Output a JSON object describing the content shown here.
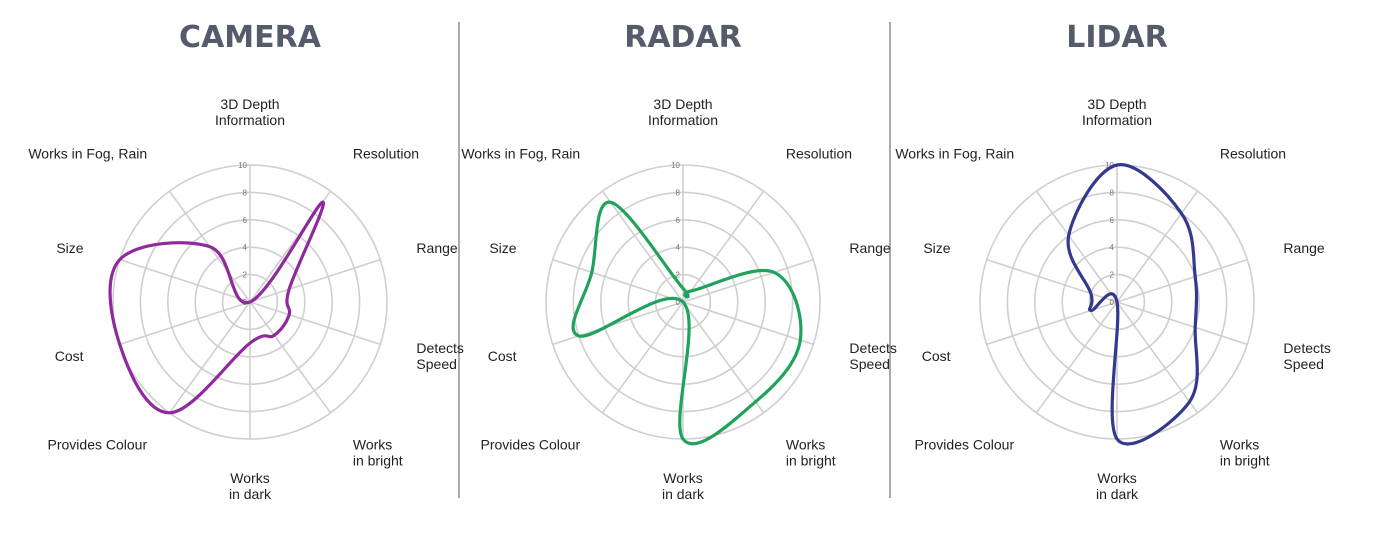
{
  "chart_data": [
    {
      "type": "radar",
      "title": "CAMERA",
      "color": "#8e2a9c",
      "axes": [
        [
          "3D Depth",
          "Information"
        ],
        [
          "Resolution"
        ],
        [
          "Range"
        ],
        [
          "Detects",
          "Speed"
        ],
        [
          "Works",
          "in bright"
        ],
        [
          "Works",
          "in dark"
        ],
        [
          "Provides Colour"
        ],
        [
          "Cost"
        ],
        [
          "Size"
        ],
        [
          "Works in Fog, Rain"
        ]
      ],
      "ticks": [
        "0",
        "2",
        "4",
        "6",
        "8",
        "10"
      ],
      "rlim": [
        0,
        10
      ],
      "values": [
        0,
        9,
        3,
        3,
        3,
        3,
        10,
        10,
        10,
        5
      ]
    },
    {
      "type": "radar",
      "title": "RADAR",
      "color": "#1fa35a",
      "axes": [
        [
          "3D Depth",
          "Information"
        ],
        [
          "Resolution"
        ],
        [
          "Range"
        ],
        [
          "Detects",
          "Speed"
        ],
        [
          "Works",
          "in bright"
        ],
        [
          "Works",
          "in dark"
        ],
        [
          "Provides Colour"
        ],
        [
          "Cost"
        ],
        [
          "Size"
        ],
        [
          "Works in Fog, Rain"
        ]
      ],
      "ticks": [
        "0",
        "2",
        "4",
        "6",
        "8",
        "10"
      ],
      "rlim": [
        0,
        10
      ],
      "values": [
        1,
        1,
        7,
        9,
        9,
        10,
        0,
        8,
        7,
        9
      ]
    },
    {
      "type": "radar",
      "title": "LIDAR",
      "color": "#343990",
      "axes": [
        [
          "3D Depth",
          "Information"
        ],
        [
          "Resolution"
        ],
        [
          "Range"
        ],
        [
          "Detects",
          "Speed"
        ],
        [
          "Works",
          "in bright"
        ],
        [
          "Works",
          "in dark"
        ],
        [
          "Provides Colour"
        ],
        [
          "Cost"
        ],
        [
          "Size"
        ],
        [
          "Works in Fog, Rain"
        ]
      ],
      "ticks": [
        "0",
        "2",
        "4",
        "6",
        "8",
        "10"
      ],
      "rlim": [
        0,
        10
      ],
      "values": [
        10,
        8,
        6,
        6,
        9,
        10,
        0,
        2,
        2,
        6
      ]
    }
  ]
}
